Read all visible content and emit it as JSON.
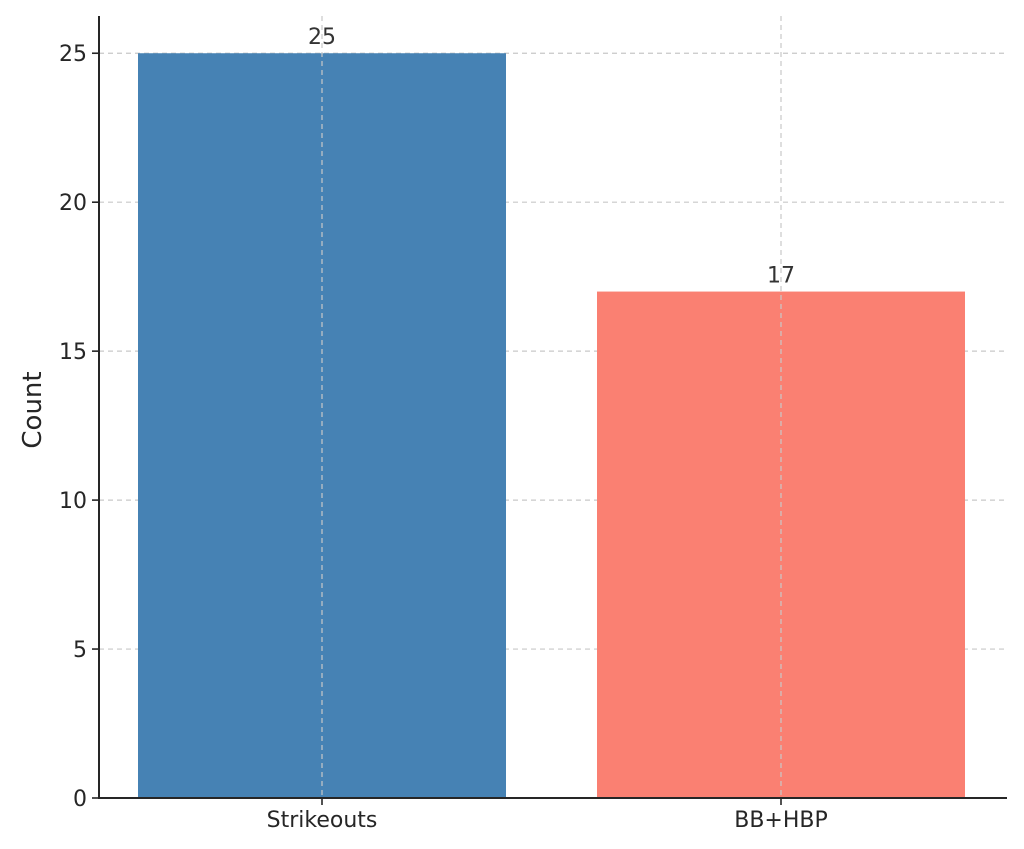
{
  "chart_data": {
    "type": "bar",
    "categories": [
      "Strikeouts",
      "BB+HBP"
    ],
    "values": [
      25,
      17
    ],
    "data_labels": [
      "25",
      "17"
    ],
    "colors": [
      "#4682B4",
      "#FA8072"
    ],
    "title": "",
    "xlabel": "",
    "ylabel": "Count",
    "ylim": [
      0,
      26.25
    ],
    "yticks": [
      0,
      5,
      10,
      15,
      20,
      25
    ],
    "grid": true
  }
}
